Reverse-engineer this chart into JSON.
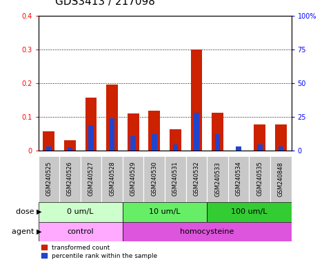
{
  "title": "GDS3413 / 217098",
  "samples": [
    "GSM240525",
    "GSM240526",
    "GSM240527",
    "GSM240528",
    "GSM240529",
    "GSM240530",
    "GSM240531",
    "GSM240532",
    "GSM240533",
    "GSM240534",
    "GSM240535",
    "GSM240848"
  ],
  "red_values": [
    0.057,
    0.03,
    0.158,
    0.195,
    0.11,
    0.118,
    0.063,
    0.3,
    0.113,
    0.0,
    0.077,
    0.077
  ],
  "blue_values": [
    0.012,
    0.01,
    0.075,
    0.095,
    0.043,
    0.048,
    0.018,
    0.113,
    0.048,
    0.012,
    0.018,
    0.013
  ],
  "ylim_left": [
    0,
    0.4
  ],
  "ylim_right": [
    0,
    100
  ],
  "yticks_left": [
    0.0,
    0.1,
    0.2,
    0.3,
    0.4
  ],
  "yticks_right": [
    0,
    25,
    50,
    75,
    100
  ],
  "yticklabels_left": [
    "0",
    "0.1",
    "0.2",
    "0.3",
    "0.4"
  ],
  "yticklabels_right": [
    "0",
    "25",
    "50",
    "75",
    "100%"
  ],
  "dose_groups": [
    {
      "label": "0 um/L",
      "start": 0,
      "end": 4,
      "color": "#CCFFCC"
    },
    {
      "label": "10 um/L",
      "start": 4,
      "end": 8,
      "color": "#66EE66"
    },
    {
      "label": "100 um/L",
      "start": 8,
      "end": 12,
      "color": "#33CC33"
    }
  ],
  "agent_groups": [
    {
      "label": "control",
      "start": 0,
      "end": 4,
      "color": "#FFAAFF"
    },
    {
      "label": "homocysteine",
      "start": 4,
      "end": 12,
      "color": "#DD55DD"
    }
  ],
  "red_color": "#CC2200",
  "blue_color": "#2244CC",
  "bar_bg_color": "#C8C8C8",
  "dose_label": "dose",
  "agent_label": "agent",
  "legend_red": "transformed count",
  "legend_blue": "percentile rank within the sample",
  "title_fontsize": 11,
  "tick_fontsize": 7,
  "label_fontsize": 8,
  "sample_fontsize": 6
}
